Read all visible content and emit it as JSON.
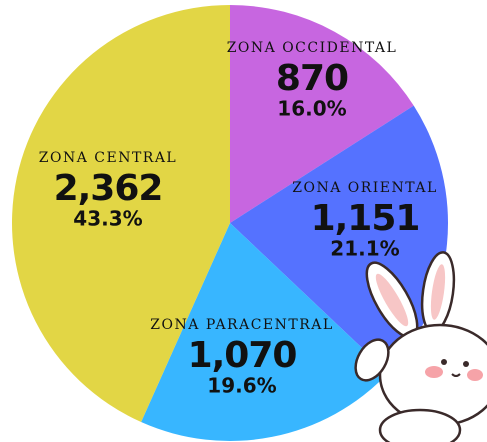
{
  "chart_data": {
    "type": "pie",
    "categories": [
      "ZONA OCCIDENTAL",
      "ZONA ORIENTAL",
      "ZONA PARACENTRAL",
      "ZONA CENTRAL"
    ],
    "values": [
      870,
      1151,
      1070,
      2362
    ],
    "value_labels": [
      "870",
      "1,151",
      "1,070",
      "2,362"
    ],
    "percent_labels": [
      "16.0%",
      "21.1%",
      "19.6%",
      "43.3%"
    ],
    "colors": [
      "#c766e0",
      "#5572ff",
      "#38b6ff",
      "#e2d645"
    ]
  }
}
